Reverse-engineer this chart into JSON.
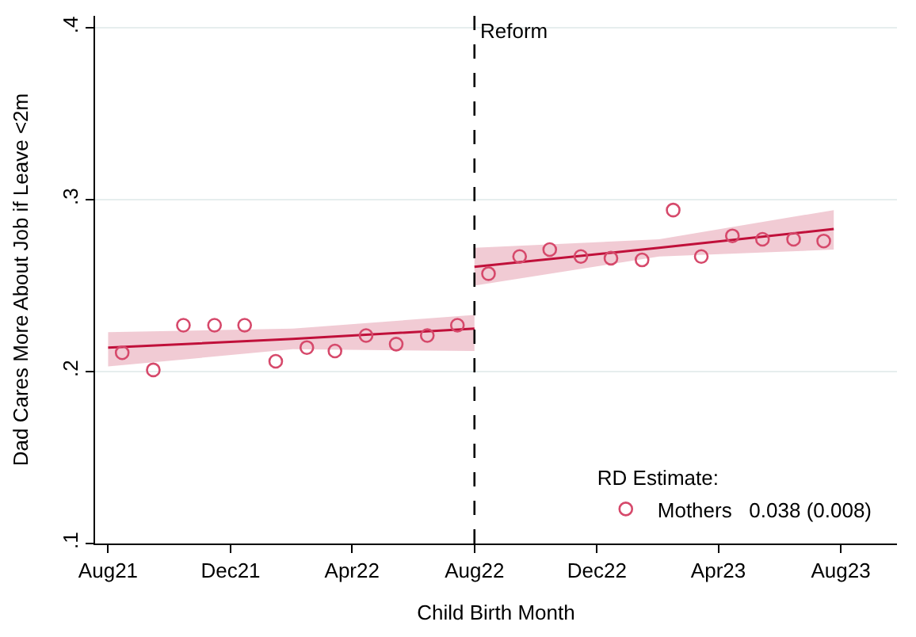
{
  "chart_data": {
    "type": "line",
    "xlabel": "Child Birth Month",
    "ylabel": "Dad Cares More About Job if Leave <2m",
    "legend_title": "RD Estimate:",
    "legend": "bottom right",
    "grid": "y",
    "xlim": [
      "2021-07-19",
      "2023-09-26"
    ],
    "ylim": [
      0.1,
      0.407
    ],
    "xticks": [
      {
        "value": "2021-08-01",
        "label": "Aug21"
      },
      {
        "value": "2021-12-01",
        "label": "Dec21"
      },
      {
        "value": "2022-04-01",
        "label": "Apr22"
      },
      {
        "value": "2022-08-01",
        "label": "Aug22"
      },
      {
        "value": "2022-12-01",
        "label": "Dec22"
      },
      {
        "value": "2023-04-01",
        "label": "Apr23"
      },
      {
        "value": "2023-08-01",
        "label": "Aug23"
      }
    ],
    "yticks": [
      {
        "value": 0.1,
        "label": ".1"
      },
      {
        "value": 0.2,
        "label": ".2"
      },
      {
        "value": 0.3,
        "label": ".3"
      },
      {
        "value": 0.4,
        "label": ".4"
      }
    ],
    "ref_lines": [
      {
        "axis": "x",
        "value": "2022-08-01",
        "label": "Reform",
        "color": "#000000",
        "line_style": "dashed"
      }
    ],
    "series": [
      {
        "name": "Mothers   0.038 (0.008)",
        "color": "#d6496b",
        "type": "scatter",
        "marker": "circle",
        "x": [
          "2021-08-15",
          "2021-09-15",
          "2021-10-15",
          "2021-11-15",
          "2021-12-15",
          "2022-01-15",
          "2022-02-15",
          "2022-03-15",
          "2022-04-15",
          "2022-05-15",
          "2022-06-15",
          "2022-07-15",
          "2022-08-15",
          "2022-09-15",
          "2022-10-15",
          "2022-11-15",
          "2022-12-15",
          "2023-01-15",
          "2023-02-15",
          "2023-03-15",
          "2023-04-15",
          "2023-05-15",
          "2023-06-15",
          "2023-07-15"
        ],
        "values": [
          0.211,
          0.201,
          0.227,
          0.227,
          0.227,
          0.206,
          0.214,
          0.212,
          0.221,
          0.216,
          0.221,
          0.227,
          0.257,
          0.267,
          0.271,
          0.267,
          0.266,
          0.265,
          0.294,
          0.267,
          0.279,
          0.277,
          0.277,
          0.276
        ]
      },
      {
        "color": "#c0103a",
        "marker": "none",
        "line_style": "solid",
        "x": [
          "2021-08-01",
          "2022-02-01",
          "2022-08-01"
        ],
        "values": [
          0.214,
          0.219,
          0.225
        ],
        "lower": [
          0.203,
          0.213,
          0.212
        ],
        "upper": [
          0.223,
          0.225,
          0.233
        ]
      },
      {
        "color": "#c0103a",
        "marker": "none",
        "line_style": "solid",
        "x": [
          "2022-08-01",
          "2023-02-01",
          "2023-07-25"
        ],
        "values": [
          0.261,
          0.272,
          0.283
        ],
        "lower": [
          0.25,
          0.267,
          0.271
        ],
        "upper": [
          0.272,
          0.277,
          0.294
        ]
      }
    ]
  }
}
